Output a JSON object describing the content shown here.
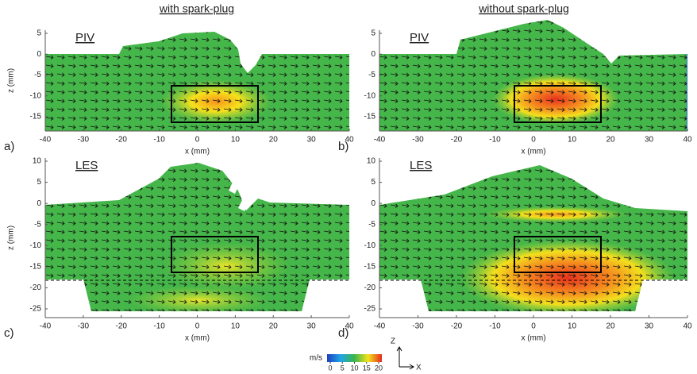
{
  "columns": [
    "with spark-plug",
    "without spark-plug"
  ],
  "panels": [
    {
      "label": "a)",
      "method": "PIV",
      "x_label": "x (mm)",
      "y_label": "z (mm)",
      "x_ticks": [
        -40,
        -30,
        -20,
        -10,
        0,
        10,
        20,
        30,
        40
      ],
      "y_ticks": [
        5,
        0,
        -5,
        -10,
        -15
      ]
    },
    {
      "label": "b)",
      "method": "PIV",
      "x_label": "x (mm)",
      "x_ticks": [
        -40,
        -30,
        -20,
        -10,
        0,
        10,
        20,
        30,
        40
      ],
      "y_ticks": [
        5,
        0,
        -5,
        -10,
        -15
      ]
    },
    {
      "label": "c)",
      "method": "LES",
      "x_label": "x (mm)",
      "y_label": "z (mm)",
      "x_ticks": [
        -40,
        -30,
        -20,
        -10,
        0,
        10,
        20,
        30,
        40
      ],
      "y_ticks": [
        10,
        5,
        0,
        -5,
        -10,
        -15,
        -20,
        -25
      ]
    },
    {
      "label": "d)",
      "method": "LES",
      "x_label": "x (mm)",
      "x_ticks": [
        -40,
        -30,
        -20,
        -10,
        0,
        10,
        20,
        30,
        40
      ],
      "y_ticks": [
        10,
        5,
        0,
        -5,
        -10,
        -15,
        -20,
        -25
      ]
    }
  ],
  "colorbar": {
    "unit": "m/s",
    "ticks": [
      0,
      5,
      10,
      15,
      20
    ]
  },
  "axes_indicator": {
    "vertical": "Z",
    "horizontal": "X"
  }
}
